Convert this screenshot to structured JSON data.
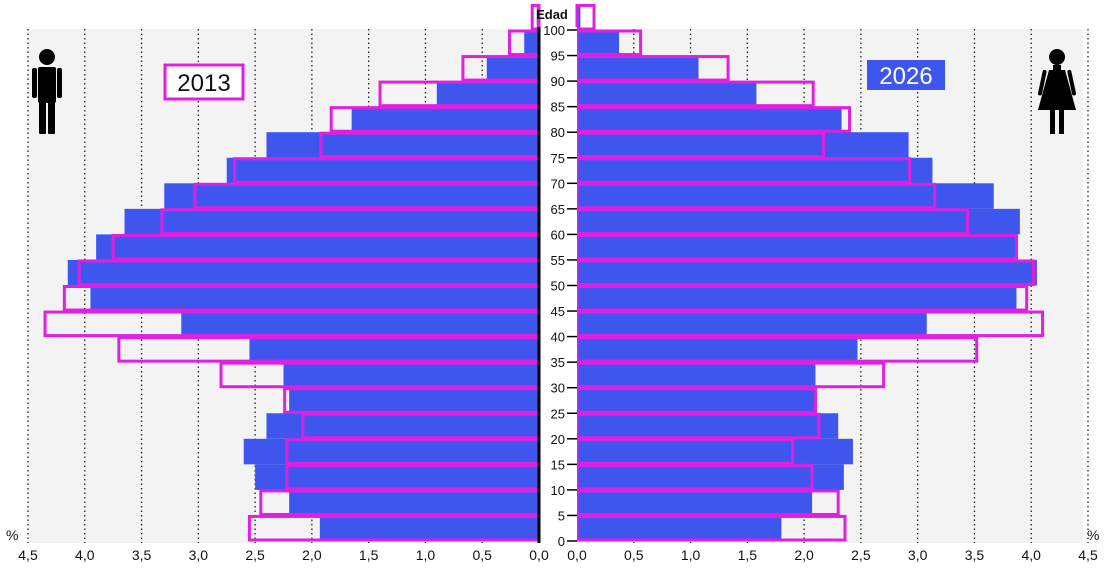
{
  "chart_data": {
    "type": "bar",
    "orientation": "population-pyramid",
    "title": "Edad",
    "unit_label": "%",
    "x_ticks": [
      "4,5",
      "4,0",
      "3,5",
      "3,0",
      "2,5",
      "2,0",
      "1,5",
      "1,0",
      "0,5",
      "0,0"
    ],
    "age_ticks": [
      "0",
      "5",
      "10",
      "15",
      "20",
      "25",
      "30",
      "35",
      "40",
      "45",
      "50",
      "55",
      "60",
      "65",
      "70",
      "75",
      "80",
      "85",
      "90",
      "95",
      "100"
    ],
    "xlim": [
      0,
      4.5
    ],
    "age_groups": [
      "0-4",
      "5-9",
      "10-14",
      "15-19",
      "20-24",
      "25-29",
      "30-34",
      "35-39",
      "40-44",
      "45-49",
      "50-54",
      "55-59",
      "60-64",
      "65-69",
      "70-74",
      "75-79",
      "80-84",
      "85-89",
      "90-94",
      "95-99",
      "100+"
    ],
    "series": [
      {
        "name": "2026",
        "style": "filled",
        "color": "#3f56ee",
        "male": [
          1.93,
          2.2,
          2.5,
          2.6,
          2.4,
          2.2,
          2.25,
          2.55,
          3.15,
          3.95,
          4.15,
          3.9,
          3.65,
          3.3,
          2.75,
          2.4,
          1.65,
          0.9,
          0.46,
          0.13,
          0.02
        ],
        "female": [
          1.8,
          2.07,
          2.35,
          2.43,
          2.3,
          2.1,
          2.1,
          2.47,
          3.08,
          3.87,
          4.05,
          3.88,
          3.9,
          3.67,
          3.13,
          2.92,
          2.33,
          1.58,
          1.07,
          0.37,
          0.03
        ]
      },
      {
        "name": "2013",
        "style": "outline",
        "color": "#e020e0",
        "male": [
          2.55,
          2.45,
          2.22,
          2.22,
          2.08,
          2.24,
          2.8,
          3.7,
          4.35,
          4.18,
          4.05,
          3.75,
          3.32,
          3.03,
          2.68,
          1.92,
          1.83,
          1.4,
          0.67,
          0.26,
          0.06
        ],
        "female": [
          2.36,
          2.3,
          2.07,
          1.9,
          2.13,
          2.1,
          2.7,
          3.52,
          4.1,
          3.96,
          4.02,
          3.87,
          3.44,
          3.15,
          2.93,
          2.17,
          2.4,
          2.08,
          1.33,
          0.56,
          0.15
        ]
      }
    ],
    "grid": true
  },
  "legend": {
    "outline_label": "2013",
    "filled_label": "2026"
  },
  "icons": {
    "left": "male-icon",
    "right": "female-icon"
  },
  "colors": {
    "filled": "#3f56ee",
    "outline": "#e020e0",
    "grid_background": "#f2f2f2"
  }
}
